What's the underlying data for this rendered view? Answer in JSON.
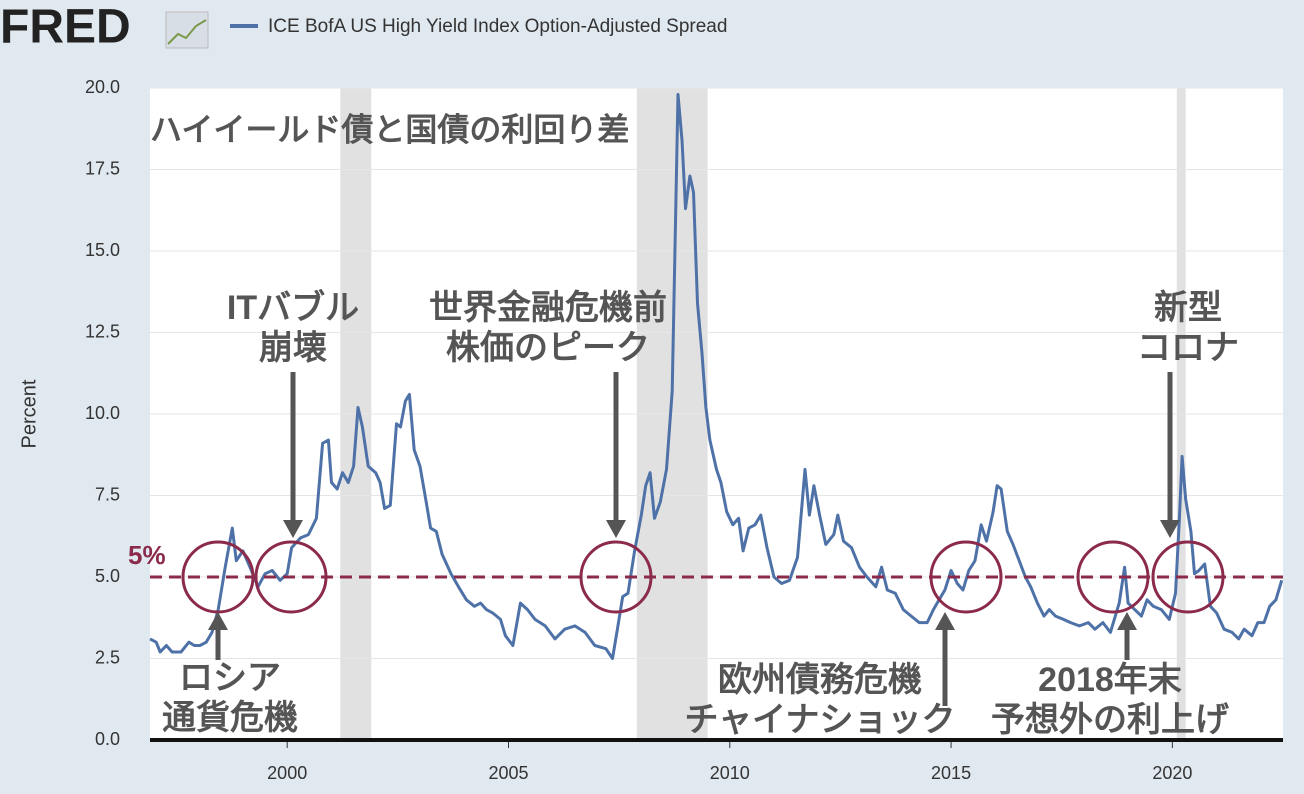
{
  "logo": "FRED",
  "chart_data": {
    "type": "line",
    "title": "ハイイールド債と国債の利回り差",
    "y_label": "Percent",
    "x": [
      1996.9,
      1997.04,
      1997.13,
      1997.27,
      1997.4,
      1997.6,
      1997.78,
      1997.9,
      1998.03,
      1998.17,
      1998.3,
      1998.44,
      1998.6,
      1998.76,
      1998.85,
      1999.0,
      1999.16,
      1999.34,
      1999.5,
      1999.66,
      1999.84,
      2000.0,
      2000.1,
      2000.3,
      2000.48,
      2000.66,
      2000.8,
      2000.93,
      2001.0,
      2001.13,
      2001.25,
      2001.38,
      2001.5,
      2001.6,
      2001.7,
      2001.83,
      2002.0,
      2002.1,
      2002.2,
      2002.33,
      2002.47,
      2002.56,
      2002.67,
      2002.76,
      2002.87,
      2003.0,
      2003.14,
      2003.24,
      2003.37,
      2003.5,
      2003.7,
      2003.87,
      2004.05,
      2004.23,
      2004.37,
      2004.5,
      2004.64,
      2004.82,
      2004.93,
      2005.1,
      2005.27,
      2005.43,
      2005.6,
      2005.83,
      2006.05,
      2006.27,
      2006.5,
      2006.73,
      2006.95,
      2007.2,
      2007.35,
      2007.46,
      2007.58,
      2007.7,
      2007.85,
      2008.0,
      2008.1,
      2008.2,
      2008.3,
      2008.43,
      2008.57,
      2008.7,
      2008.83,
      2008.92,
      2009.0,
      2009.1,
      2009.18,
      2009.27,
      2009.37,
      2009.46,
      2009.55,
      2009.7,
      2009.8,
      2009.93,
      2010.07,
      2010.2,
      2010.3,
      2010.43,
      2010.57,
      2010.7,
      2010.84,
      2011.0,
      2011.17,
      2011.35,
      2011.53,
      2011.7,
      2011.8,
      2011.9,
      2012.03,
      2012.17,
      2012.35,
      2012.44,
      2012.57,
      2012.75,
      2012.93,
      2013.1,
      2013.3,
      2013.43,
      2013.56,
      2013.74,
      2013.92,
      2014.1,
      2014.28,
      2014.46,
      2014.6,
      2014.73,
      2014.86,
      2015.0,
      2015.14,
      2015.27,
      2015.4,
      2015.54,
      2015.68,
      2015.8,
      2015.95,
      2016.04,
      2016.13,
      2016.27,
      2016.4,
      2016.54,
      2016.68,
      2016.8,
      2016.95,
      2017.1,
      2017.22,
      2017.36,
      2017.54,
      2017.7,
      2017.9,
      2018.1,
      2018.25,
      2018.43,
      2018.6,
      2018.8,
      2018.92,
      2019.0,
      2019.15,
      2019.3,
      2019.43,
      2019.57,
      2019.75,
      2019.93,
      2020.07,
      2020.16,
      2020.22,
      2020.3,
      2020.42,
      2020.5,
      2020.6,
      2020.73,
      2020.86,
      2021.0,
      2021.17,
      2021.35,
      2021.5,
      2021.62,
      2021.8,
      2021.93,
      2022.07,
      2022.2,
      2022.34,
      2022.47
    ],
    "series": [
      {
        "name": "ICE BofA US High Yield Index Option-Adjusted Spread",
        "color": "#4e72a8",
        "values": [
          3.1,
          3.0,
          2.7,
          2.9,
          2.7,
          2.7,
          3.0,
          2.9,
          2.9,
          3.0,
          3.3,
          4.0,
          5.3,
          6.5,
          5.5,
          5.8,
          5.3,
          4.7,
          5.1,
          5.2,
          4.9,
          5.1,
          5.9,
          6.2,
          6.3,
          6.8,
          9.1,
          9.2,
          7.9,
          7.7,
          8.2,
          7.9,
          8.4,
          10.2,
          9.6,
          8.4,
          8.2,
          7.9,
          7.1,
          7.2,
          9.7,
          9.6,
          10.4,
          10.6,
          8.9,
          8.4,
          7.3,
          6.5,
          6.4,
          5.7,
          5.1,
          4.7,
          4.3,
          4.1,
          4.2,
          4.0,
          3.9,
          3.7,
          3.2,
          2.9,
          4.2,
          4.0,
          3.7,
          3.5,
          3.1,
          3.4,
          3.5,
          3.3,
          2.9,
          2.8,
          2.5,
          3.4,
          4.4,
          4.5,
          5.8,
          6.9,
          7.8,
          8.2,
          6.8,
          7.3,
          8.3,
          10.7,
          19.8,
          18.4,
          16.3,
          17.3,
          16.8,
          13.4,
          11.9,
          10.2,
          9.2,
          8.3,
          7.9,
          7.0,
          6.6,
          6.8,
          5.8,
          6.5,
          6.6,
          6.9,
          5.9,
          5.0,
          4.8,
          4.9,
          5.6,
          8.3,
          6.9,
          7.8,
          6.9,
          6.0,
          6.3,
          6.9,
          6.1,
          5.9,
          5.3,
          5.0,
          4.7,
          5.3,
          4.6,
          4.5,
          4.0,
          3.8,
          3.6,
          3.6,
          4.0,
          4.3,
          4.6,
          5.2,
          4.8,
          4.6,
          5.2,
          5.5,
          6.6,
          6.1,
          7.0,
          7.8,
          7.7,
          6.4,
          6.0,
          5.5,
          5.0,
          4.7,
          4.2,
          3.8,
          4.0,
          3.8,
          3.7,
          3.6,
          3.5,
          3.6,
          3.4,
          3.6,
          3.3,
          4.2,
          5.3,
          4.2,
          4.0,
          3.8,
          4.3,
          4.1,
          4.0,
          3.7,
          4.5,
          6.8,
          8.7,
          7.4,
          6.4,
          5.1,
          5.2,
          5.4,
          4.1,
          3.9,
          3.4,
          3.3,
          3.1,
          3.4,
          3.2,
          3.6,
          3.6,
          4.1,
          4.3,
          4.9
        ]
      }
    ],
    "xlim": [
      1996.9,
      2022.5
    ],
    "xticks": [
      2000,
      2005,
      2010,
      2015,
      2020
    ],
    "ylim": [
      0,
      20
    ],
    "yticks": [
      {
        "value": 0,
        "label": "0.0"
      },
      2.5,
      {
        "value": 5,
        "label": "5.0"
      },
      7.5,
      {
        "value": 10,
        "label": "10.0"
      },
      12.5,
      {
        "value": 15,
        "label": "15.0"
      },
      17.5,
      {
        "value": 20,
        "label": "20.0"
      }
    ],
    "grid": true,
    "recessions": [
      [
        2001.2,
        2001.9
      ],
      [
        2007.9,
        2009.5
      ],
      [
        2020.1,
        2020.3
      ]
    ],
    "reference_line": {
      "value": 5,
      "label": "5%",
      "color": "#8b2a4a"
    },
    "annotations": [
      {
        "lines": [
          "ロシア",
          "通貨危機"
        ]
      },
      {
        "lines": [
          "ITバブル",
          "崩壊"
        ]
      },
      {
        "lines": [
          "世界金融危機前",
          "株価のピーク"
        ]
      },
      {
        "lines": [
          "欧州債務危機",
          "チャイナショック"
        ]
      },
      {
        "lines": [
          "2018年末",
          "予想外の利上げ"
        ]
      },
      {
        "lines": [
          "新型",
          "コロナ"
        ]
      }
    ]
  }
}
